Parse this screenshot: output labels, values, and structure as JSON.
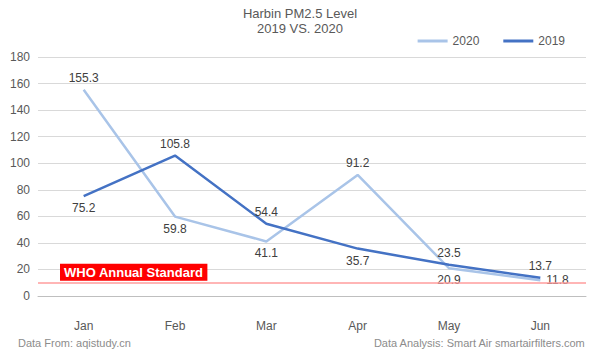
{
  "chart_data": {
    "type": "line",
    "title": "Harbin PM2.5 Level",
    "subtitle": "2019 VS. 2020",
    "categories": [
      "Jan",
      "Feb",
      "Mar",
      "Apr",
      "May",
      "Jun"
    ],
    "series": [
      {
        "name": "2020",
        "color": "#a9c4e8",
        "values": [
          155.3,
          59.8,
          41.1,
          91.2,
          20.9,
          11.8
        ]
      },
      {
        "name": "2019",
        "color": "#4472c4",
        "values": [
          75.2,
          105.8,
          54.4,
          35.7,
          23.5,
          13.7
        ]
      }
    ],
    "ylim": [
      0,
      180
    ],
    "yticks": [
      0,
      20,
      40,
      60,
      80,
      100,
      120,
      140,
      160,
      180
    ],
    "grid": true,
    "legend": "top-right",
    "data_labels": true,
    "annotations": [
      {
        "text": "WHO Annual Standard",
        "y": 10,
        "color": "#ff0000"
      }
    ],
    "source": "Data From: aqistudy.cn",
    "credit": "Data Analysis: Smart Air smartairfilters.com"
  }
}
